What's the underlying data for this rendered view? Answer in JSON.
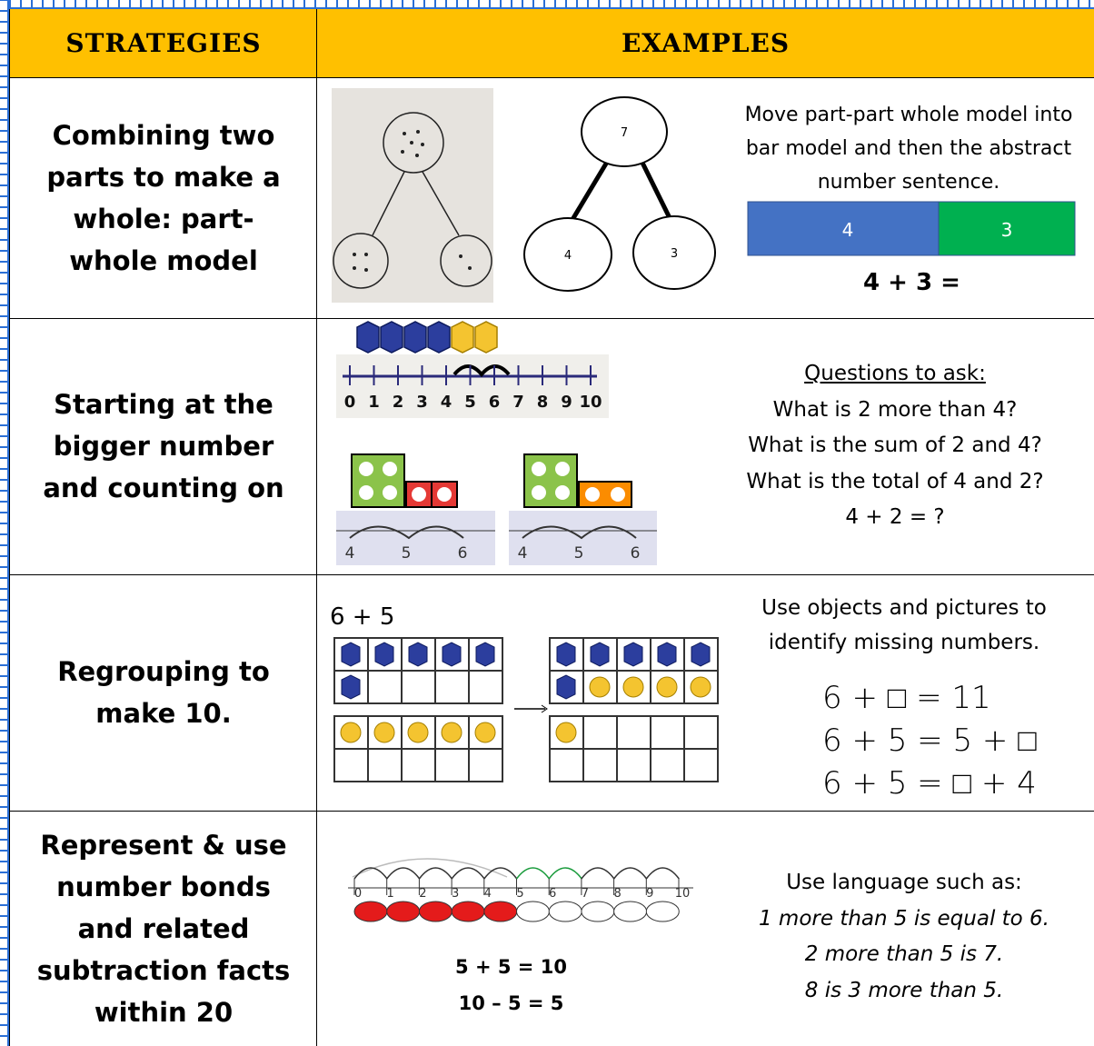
{
  "header": {
    "strategies": "STRATEGIES",
    "examples": "EXAMPLES"
  },
  "rows": [
    {
      "strategy": "Combining two parts to make a whole: part- whole model",
      "model": {
        "whole": "7",
        "parts": [
          "4",
          "3"
        ]
      },
      "description": "Move part-part whole model into bar model and then the abstract number sentence.",
      "bar": [
        "4",
        "3"
      ],
      "sentence": "4 + 3 ="
    },
    {
      "strategy": "Starting at the bigger number and counting on",
      "number_line": [
        "0",
        "1",
        "2",
        "3",
        "4",
        "5",
        "6",
        "7",
        "8",
        "9",
        "10"
      ],
      "small_lines": [
        [
          "4",
          "5",
          "6"
        ],
        [
          "4",
          "5",
          "6"
        ]
      ],
      "questions_heading": "Questions to ask:",
      "questions": [
        "What is 2 more than 4?",
        "What is the sum of 2 and 4?",
        "What is the total of 4 and 2?",
        "4 + 2 = ?"
      ]
    },
    {
      "strategy": "Regrouping to make 10.",
      "expression": "6 + 5",
      "description": "Use objects and pictures to identify missing numbers.",
      "equations": [
        "6 + □ = 11",
        "6 + 5 = 5 + □",
        "6 + 5 = □ + 4"
      ]
    },
    {
      "strategy": "Represent & use number bonds and related subtraction facts within 20",
      "number_line": [
        "0",
        "1",
        "2",
        "3",
        "4",
        "5",
        "6",
        "7",
        "8",
        "9",
        "10"
      ],
      "sentences": [
        "5 + 5 = 10",
        "10 – 5 = 5"
      ],
      "intro": "Use language such as:",
      "examples": [
        "1 more than 5 is equal to 6.",
        "2 more than 5 is 7.",
        "8 is 3 more than 5."
      ]
    }
  ]
}
